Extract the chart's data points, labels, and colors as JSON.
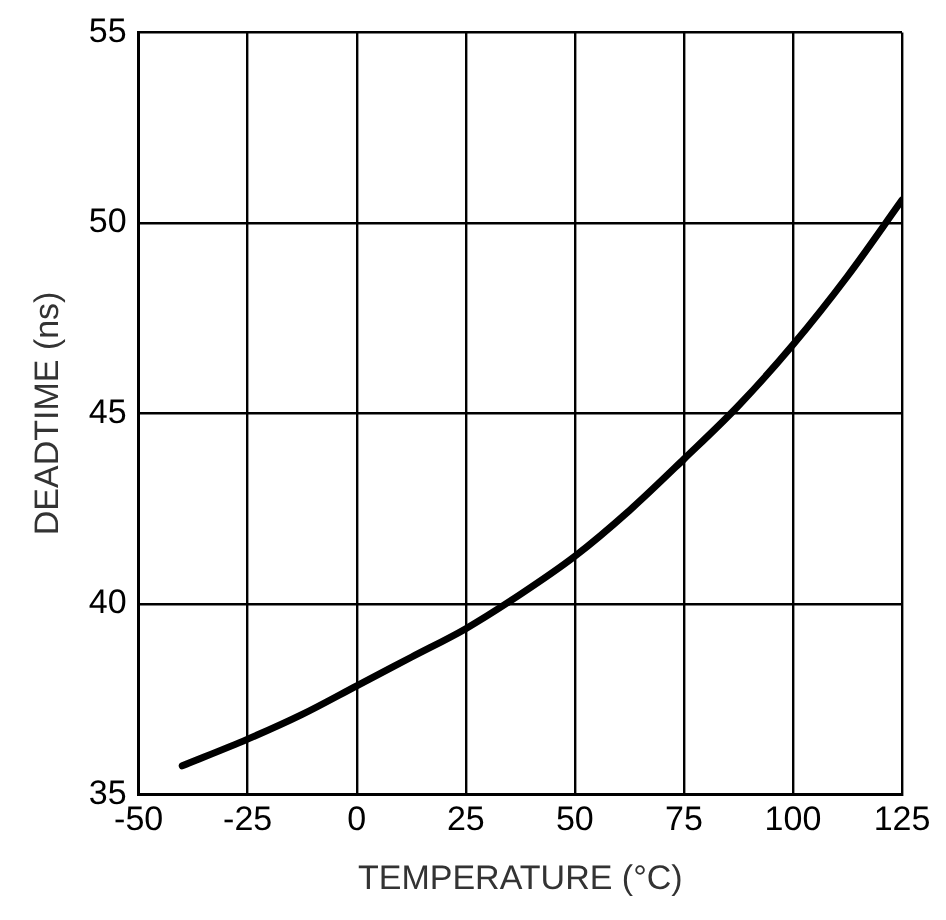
{
  "chart_data": {
    "type": "line",
    "xlabel": "TEMPERATURE (°C)",
    "ylabel": "DEADTIME (ns)",
    "x": [
      -40,
      -25,
      -12.5,
      0,
      12.5,
      25,
      37.5,
      50,
      62.5,
      75,
      87.5,
      100,
      112.5,
      125
    ],
    "series": [
      {
        "color": "#000000",
        "values": [
          35.75,
          36.45,
          37.1,
          37.85,
          38.6,
          39.35,
          40.25,
          41.25,
          42.45,
          43.8,
          45.2,
          46.8,
          48.6,
          50.6
        ]
      }
    ],
    "xlim": [
      -50,
      125
    ],
    "xticks": [
      -50,
      -25,
      0,
      25,
      50,
      75,
      100,
      125
    ],
    "ylim": [
      35,
      55
    ],
    "yticks": [
      35,
      40,
      45,
      50,
      55
    ],
    "grid": true,
    "legend": false,
    "marker": "none",
    "line_style": "solid"
  }
}
